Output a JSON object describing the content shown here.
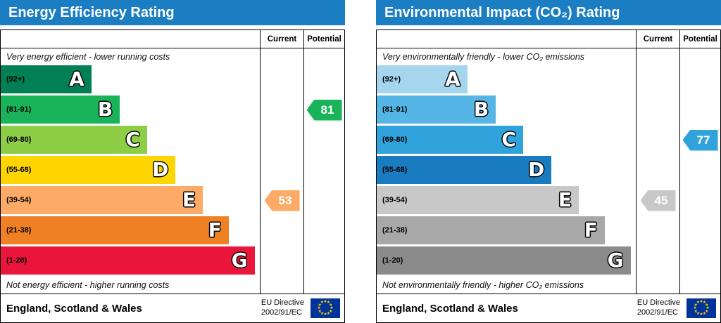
{
  "theme": {
    "header_bg": "#1b7ec2",
    "header_text": "#ffffff",
    "border": "#000000",
    "eu_flag_bg": "#003399",
    "eu_star_color": "#ffcc00"
  },
  "chart_data": [
    {
      "type": "bar",
      "title": "Energy Efficiency Rating",
      "top_caption": "Very energy efficient - lower running costs",
      "bottom_caption": "Not energy efficient - higher running costs",
      "columns": [
        "Current",
        "Potential"
      ],
      "scale_min": 1,
      "scale_max": 100,
      "bands": [
        {
          "letter": "A",
          "range": "(92+)",
          "min": 92,
          "max": 100,
          "color": "#008054",
          "width_pct": 35
        },
        {
          "letter": "B",
          "range": "(81-91)",
          "min": 81,
          "max": 91,
          "color": "#19b459",
          "width_pct": 46
        },
        {
          "letter": "C",
          "range": "(69-80)",
          "min": 69,
          "max": 80,
          "color": "#8dce46",
          "width_pct": 56.5
        },
        {
          "letter": "D",
          "range": "(55-68)",
          "min": 55,
          "max": 68,
          "color": "#ffd500",
          "width_pct": 67.5
        },
        {
          "letter": "E",
          "range": "(39-54)",
          "min": 39,
          "max": 54,
          "color": "#fcaa65",
          "width_pct": 78
        },
        {
          "letter": "F",
          "range": "(21-38)",
          "min": 21,
          "max": 38,
          "color": "#ef8023",
          "width_pct": 88
        },
        {
          "letter": "G",
          "range": "(1-20)",
          "min": 1,
          "max": 20,
          "color": "#e9153b",
          "width_pct": 98
        }
      ],
      "current": {
        "value": 53,
        "band": "E",
        "band_index": 4,
        "color": "#fcaa65"
      },
      "potential": {
        "value": 81,
        "band": "B",
        "band_index": 1,
        "color": "#19b459"
      },
      "footer_region": "England, Scotland & Wales",
      "footer_directive": [
        "EU Directive",
        "2002/91/EC"
      ]
    },
    {
      "type": "bar",
      "title": "Environmental Impact (CO₂) Rating",
      "top_caption": "Very environmentally friendly - lower CO₂ emissions",
      "bottom_caption": "Not environmentally friendly - higher CO₂ emissions",
      "columns": [
        "Current",
        "Potential"
      ],
      "scale_min": 1,
      "scale_max": 100,
      "bands": [
        {
          "letter": "A",
          "range": "(92+)",
          "min": 92,
          "max": 100,
          "color": "#a5d6ee",
          "width_pct": 35
        },
        {
          "letter": "B",
          "range": "(81-91)",
          "min": 81,
          "max": 91,
          "color": "#55b5e4",
          "width_pct": 46
        },
        {
          "letter": "C",
          "range": "(69-80)",
          "min": 69,
          "max": 80,
          "color": "#30a3dc",
          "width_pct": 56.5
        },
        {
          "letter": "D",
          "range": "(55-68)",
          "min": 55,
          "max": 68,
          "color": "#1a7cc0",
          "width_pct": 67.5
        },
        {
          "letter": "E",
          "range": "(39-54)",
          "min": 39,
          "max": 54,
          "color": "#c8c8c8",
          "width_pct": 78
        },
        {
          "letter": "F",
          "range": "(21-38)",
          "min": 21,
          "max": 38,
          "color": "#a8a8a8",
          "width_pct": 88
        },
        {
          "letter": "G",
          "range": "(1-20)",
          "min": 1,
          "max": 20,
          "color": "#8b8b8b",
          "width_pct": 98
        }
      ],
      "current": {
        "value": 45,
        "band": "E",
        "band_index": 4,
        "color": "#c8c8c8"
      },
      "potential": {
        "value": 77,
        "band": "C",
        "band_index": 2,
        "color": "#30a3dc"
      },
      "footer_region": "England, Scotland & Wales",
      "footer_directive": [
        "EU Directive",
        "2002/91/EC"
      ]
    }
  ]
}
